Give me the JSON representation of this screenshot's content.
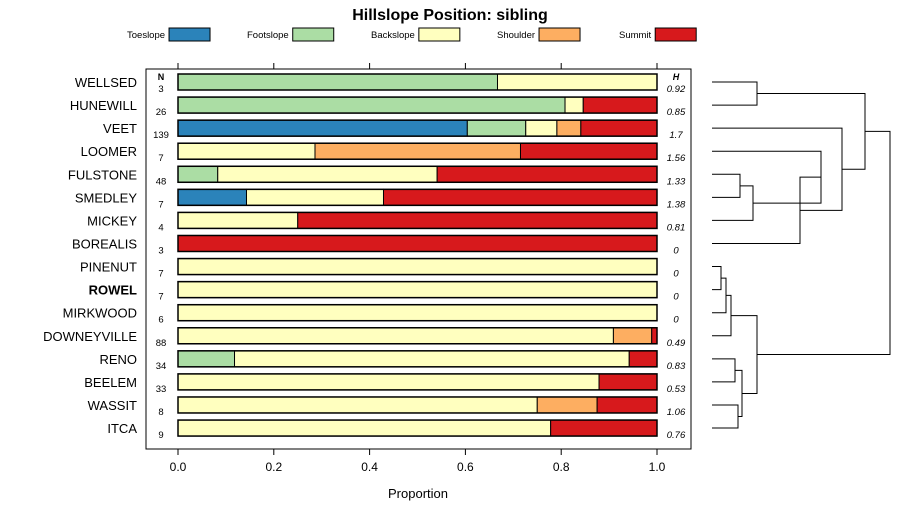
{
  "chart_data": {
    "type": "bar",
    "orientation": "horizontal",
    "stacked": true,
    "title": "Hillslope Position: sibling",
    "xlabel": "Proportion",
    "ylabel": "",
    "xlim": [
      0,
      1
    ],
    "xticks": [
      "0.0",
      "0.2",
      "0.4",
      "0.6",
      "0.8",
      "1.0"
    ],
    "legend_position": "top",
    "n_header": "N",
    "h_header": "H",
    "highlighted_category": "ROWEL",
    "dendrogram": true,
    "series": [
      {
        "name": "Toeslope",
        "color": "#2b83ba"
      },
      {
        "name": "Footslope",
        "color": "#abdda4"
      },
      {
        "name": "Backslope",
        "color": "#ffffbf"
      },
      {
        "name": "Shoulder",
        "color": "#fdae61"
      },
      {
        "name": "Summit",
        "color": "#d7191c"
      }
    ],
    "categories": [
      "WELLSED",
      "HUNEWILL",
      "VEET",
      "LOOMER",
      "FULSTONE",
      "SMEDLEY",
      "MICKEY",
      "BOREALIS",
      "PINENUT",
      "ROWEL",
      "MIRKWOOD",
      "DOWNEYVILLE",
      "RENO",
      "BEELEM",
      "WASSIT",
      "ITCA"
    ],
    "n": [
      "3",
      "26",
      "139",
      "7",
      "48",
      "7",
      "4",
      "3",
      "7",
      "7",
      "6",
      "88",
      "34",
      "33",
      "8",
      "9"
    ],
    "h": [
      "0.92",
      "0.85",
      "1.7",
      "1.56",
      "1.33",
      "1.38",
      "0.81",
      "0",
      "0",
      "0",
      "0",
      "0.49",
      "0.83",
      "0.53",
      "1.06",
      "0.76"
    ],
    "values": [
      [
        0,
        0.667,
        0.333,
        0,
        0
      ],
      [
        0,
        0.808,
        0.038,
        0,
        0.154
      ],
      [
        0.604,
        0.122,
        0.065,
        0.05,
        0.159
      ],
      [
        0,
        0,
        0.286,
        0.429,
        0.285
      ],
      [
        0,
        0.083,
        0.458,
        0,
        0.459
      ],
      [
        0.143,
        0,
        0.286,
        0,
        0.571
      ],
      [
        0,
        0,
        0.25,
        0,
        0.75
      ],
      [
        0,
        0,
        0,
        0,
        1.0
      ],
      [
        0,
        0,
        1.0,
        0,
        0
      ],
      [
        0,
        0,
        1.0,
        0,
        0
      ],
      [
        0,
        0,
        1.0,
        0,
        0
      ],
      [
        0,
        0,
        0.909,
        0.08,
        0.011
      ],
      [
        0,
        0.118,
        0.824,
        0,
        0.058
      ],
      [
        0,
        0,
        0.879,
        0,
        0.121
      ],
      [
        0,
        0,
        0.75,
        0.125,
        0.125
      ],
      [
        0,
        0,
        0.778,
        0,
        0.222
      ]
    ]
  }
}
